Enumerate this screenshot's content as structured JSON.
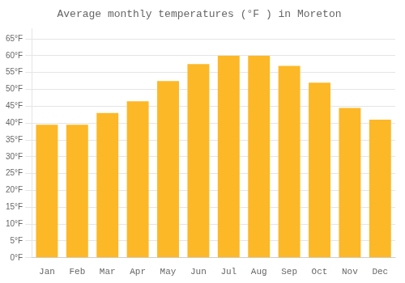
{
  "chart_data": {
    "type": "bar",
    "title": "Average monthly temperatures (°F ) in Moreton",
    "categories": [
      "Jan",
      "Feb",
      "Mar",
      "Apr",
      "May",
      "Jun",
      "Jul",
      "Aug",
      "Sep",
      "Oct",
      "Nov",
      "Dec"
    ],
    "values": [
      39.5,
      39.5,
      43.0,
      46.5,
      52.5,
      57.5,
      60.0,
      60.0,
      57.0,
      52.0,
      44.5,
      41.0
    ],
    "color": "#FDB827",
    "ylim": [
      0,
      68
    ],
    "yticks": [
      {
        "value": 0,
        "label": "0°F"
      },
      {
        "value": 5,
        "label": "5°F"
      },
      {
        "value": 10,
        "label": "10°F"
      },
      {
        "value": 15,
        "label": "15°F"
      },
      {
        "value": 20,
        "label": "20°F"
      },
      {
        "value": 25,
        "label": "25°F"
      },
      {
        "value": 30,
        "label": "30°F"
      },
      {
        "value": 35,
        "label": "35°F"
      },
      {
        "value": 40,
        "label": "40°F"
      },
      {
        "value": 45,
        "label": "45°F"
      },
      {
        "value": 50,
        "label": "50°F"
      },
      {
        "value": 55,
        "label": "55°F"
      },
      {
        "value": 60,
        "label": "60°F"
      },
      {
        "value": 65,
        "label": "65°F"
      }
    ],
    "grid": true
  }
}
